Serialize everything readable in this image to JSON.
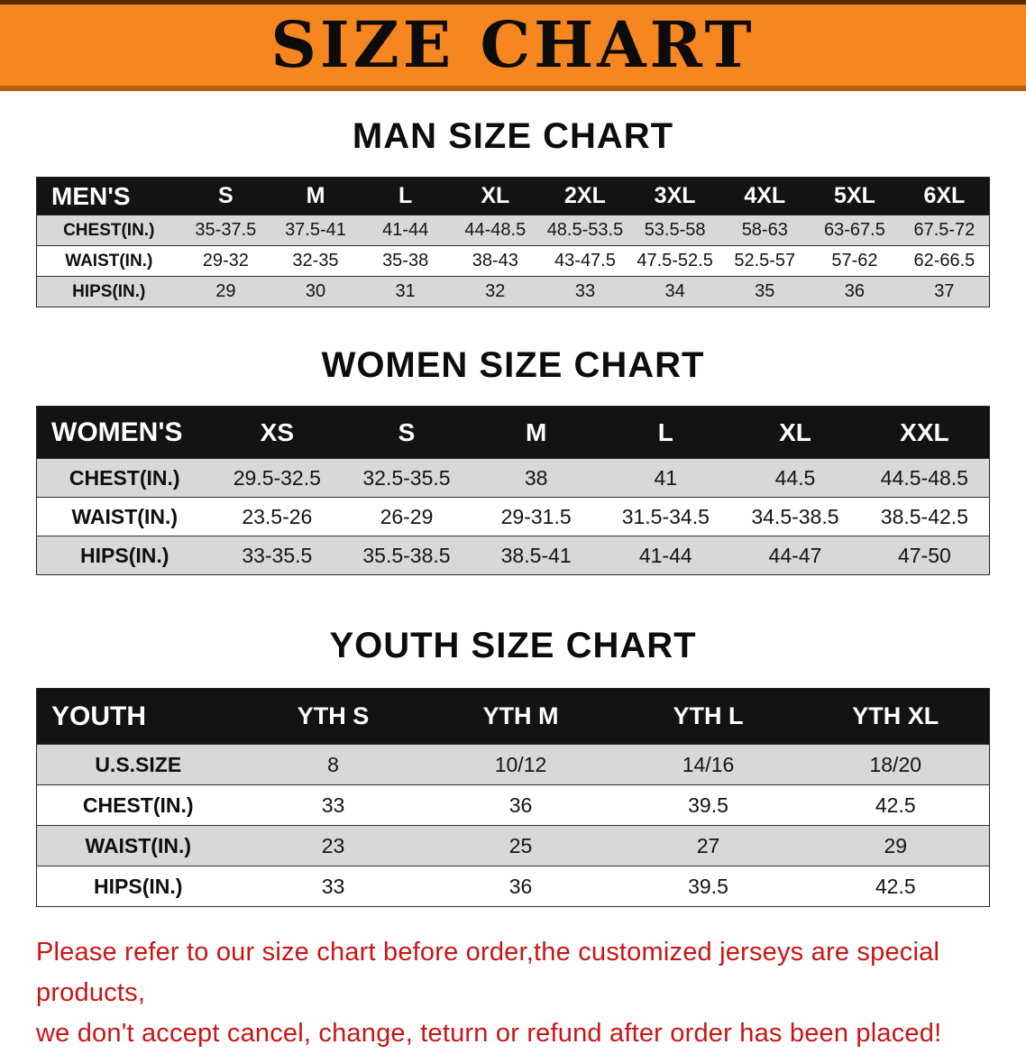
{
  "banner": {
    "title": "SIZE CHART"
  },
  "colors": {
    "banner_bg": "#f6861f",
    "table_header_bg": "#131313",
    "row_alt_bg": "#d8d8d8",
    "footer_text": "#cc1414"
  },
  "sections": {
    "men": {
      "heading": "MAN SIZE CHART",
      "corner": "MEN'S",
      "sizes": [
        "S",
        "M",
        "L",
        "XL",
        "2XL",
        "3XL",
        "4XL",
        "5XL",
        "6XL"
      ],
      "rows": [
        {
          "label": "CHEST(IN.)",
          "values": [
            "35-37.5",
            "37.5-41",
            "41-44",
            "44-48.5",
            "48.5-53.5",
            "53.5-58",
            "58-63",
            "63-67.5",
            "67.5-72"
          ]
        },
        {
          "label": "WAIST(IN.)",
          "values": [
            "29-32",
            "32-35",
            "35-38",
            "38-43",
            "43-47.5",
            "47.5-52.5",
            "52.5-57",
            "57-62",
            "62-66.5"
          ]
        },
        {
          "label": "HIPS(IN.)",
          "values": [
            "29",
            "30",
            "31",
            "32",
            "33",
            "34",
            "35",
            "36",
            "37"
          ]
        }
      ]
    },
    "women": {
      "heading": "WOMEN SIZE CHART",
      "corner": "WOMEN'S",
      "sizes": [
        "XS",
        "S",
        "M",
        "L",
        "XL",
        "XXL"
      ],
      "rows": [
        {
          "label": "CHEST(IN.)",
          "values": [
            "29.5-32.5",
            "32.5-35.5",
            "38",
            "41",
            "44.5",
            "44.5-48.5"
          ]
        },
        {
          "label": "WAIST(IN.)",
          "values": [
            "23.5-26",
            "26-29",
            "29-31.5",
            "31.5-34.5",
            "34.5-38.5",
            "38.5-42.5"
          ]
        },
        {
          "label": "HIPS(IN.)",
          "values": [
            "33-35.5",
            "35.5-38.5",
            "38.5-41",
            "41-44",
            "44-47",
            "47-50"
          ]
        }
      ]
    },
    "youth": {
      "heading": "YOUTH SIZE CHART",
      "corner": "YOUTH",
      "sizes": [
        "YTH S",
        "YTH M",
        "YTH L",
        "YTH XL"
      ],
      "rows": [
        {
          "label": "U.S.SIZE",
          "values": [
            "8",
            "10/12",
            "14/16",
            "18/20"
          ]
        },
        {
          "label": "CHEST(IN.)",
          "values": [
            "33",
            "36",
            "39.5",
            "42.5"
          ]
        },
        {
          "label": "WAIST(IN.)",
          "values": [
            "23",
            "25",
            "27",
            "29"
          ]
        },
        {
          "label": "HIPS(IN.)",
          "values": [
            "33",
            "36",
            "39.5",
            "42.5"
          ]
        }
      ]
    }
  },
  "footer": {
    "line1": "Please refer to our size chart before order,the customized jerseys are special products,",
    "line2": "we don't accept cancel, change, teturn or refund after order has been placed!"
  }
}
